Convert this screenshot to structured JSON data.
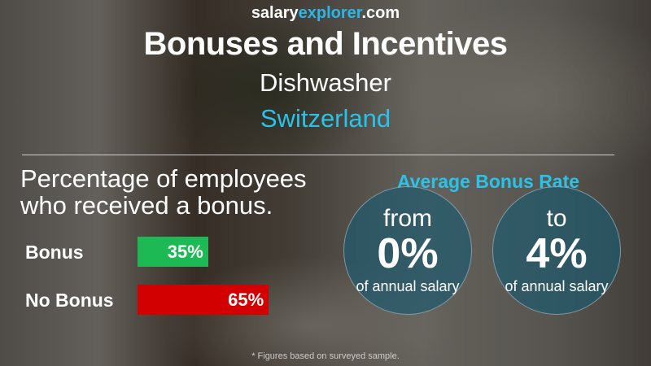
{
  "header": {
    "brand_part1": "salary",
    "brand_part2": "explorer",
    "brand_part3": ".com",
    "title": "Bonuses and Incentives",
    "job": "Dishwasher",
    "country": "Switzerland"
  },
  "left": {
    "heading_line1": "Percentage of employees",
    "heading_line2": "who received a bonus."
  },
  "chart_data": {
    "type": "bar",
    "orientation": "horizontal",
    "categories": [
      "Bonus",
      "No Bonus"
    ],
    "values": [
      35,
      65
    ],
    "value_labels": [
      "35%",
      "65%"
    ],
    "colors": [
      "#1db954",
      "#d20000"
    ],
    "xlim": [
      0,
      100
    ]
  },
  "right": {
    "heading": "Average Bonus Rate",
    "from": {
      "word": "from",
      "value": "0%",
      "sub": "of annual salary"
    },
    "to": {
      "word": "to",
      "value": "4%",
      "sub": "of annual salary"
    }
  },
  "footnote": "* Figures based on surveyed sample."
}
